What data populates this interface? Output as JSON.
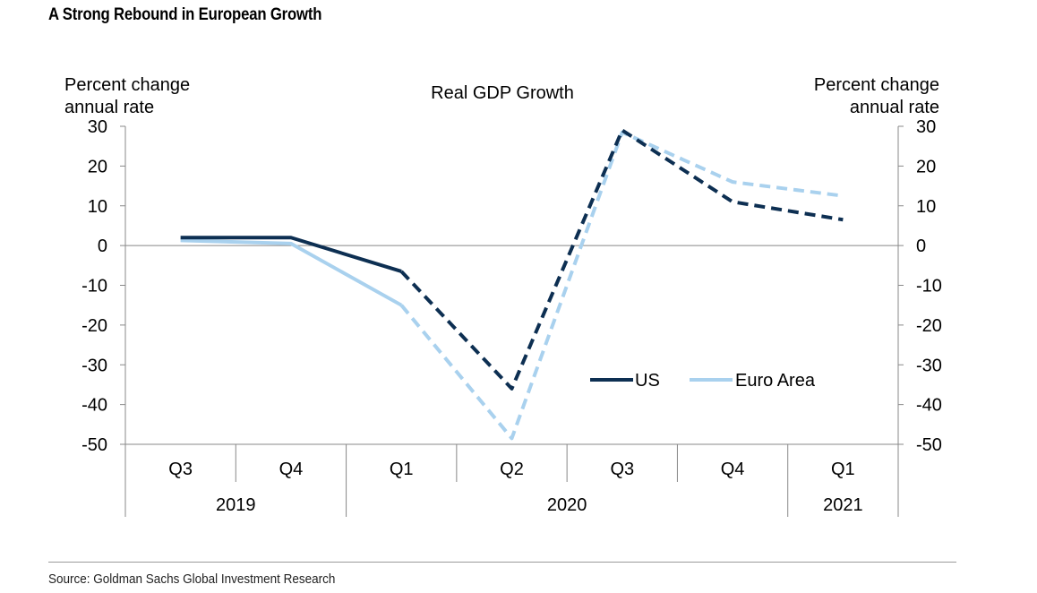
{
  "header": {
    "title": "A Strong Rebound in European Growth"
  },
  "footer": {
    "source": "Source: Goldman Sachs Global Investment Research"
  },
  "chart_data": {
    "type": "line",
    "title": "Real GDP Growth",
    "ylabel_left": [
      "Percent change",
      "annual rate"
    ],
    "ylabel_right": [
      "Percent change",
      "annual rate"
    ],
    "ylim": [
      -50,
      30
    ],
    "yticks": [
      30,
      20,
      10,
      0,
      -10,
      -20,
      -30,
      -40,
      -50
    ],
    "categories": [
      "Q3",
      "Q4",
      "Q1",
      "Q2",
      "Q3",
      "Q4",
      "Q1"
    ],
    "years": [
      {
        "label": "2019",
        "start": 0,
        "end": 1
      },
      {
        "label": "2020",
        "start": 2,
        "end": 5
      },
      {
        "label": "2021",
        "start": 6,
        "end": 6
      }
    ],
    "forecast_start_index": 2,
    "series": [
      {
        "name": "US",
        "color": "#0d2f52",
        "values": [
          2,
          2,
          -6.5,
          -36,
          29,
          11,
          6.5
        ]
      },
      {
        "name": "Euro Area",
        "color": "#a9d1ee",
        "values": [
          1.3,
          0.5,
          -15,
          -48.5,
          28.5,
          16,
          12.5
        ]
      }
    ],
    "legend": [
      "US",
      "Euro Area"
    ]
  }
}
